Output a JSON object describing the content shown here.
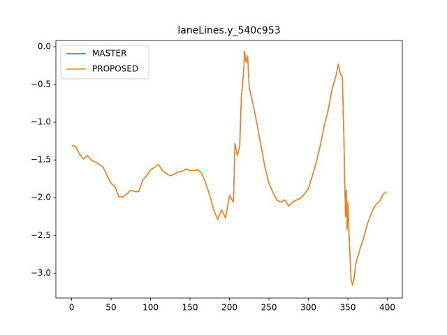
{
  "chart_data": {
    "type": "line",
    "title": "laneLines.y_540c953",
    "x": [
      0,
      5,
      10,
      15,
      20,
      25,
      30,
      35,
      40,
      45,
      50,
      55,
      60,
      65,
      70,
      75,
      80,
      85,
      90,
      95,
      100,
      105,
      110,
      115,
      120,
      125,
      130,
      135,
      140,
      145,
      150,
      155,
      160,
      165,
      170,
      175,
      180,
      185,
      190,
      195,
      200,
      205,
      207,
      210,
      213,
      215,
      218,
      219,
      221,
      223,
      225,
      230,
      235,
      240,
      245,
      250,
      255,
      260,
      265,
      270,
      275,
      280,
      285,
      290,
      295,
      300,
      305,
      310,
      315,
      320,
      325,
      330,
      335,
      338,
      340,
      343,
      345,
      347,
      348,
      349,
      350,
      352,
      354,
      356,
      358,
      360,
      365,
      370,
      375,
      380,
      385,
      390,
      395,
      399
    ],
    "series": [
      {
        "name": "MASTER",
        "color": "#1f77b4",
        "values": [
          -1.31,
          -1.32,
          -1.42,
          -1.49,
          -1.44,
          -1.5,
          -1.53,
          -1.56,
          -1.6,
          -1.71,
          -1.81,
          -1.86,
          -1.99,
          -1.99,
          -1.95,
          -1.9,
          -1.92,
          -1.92,
          -1.77,
          -1.71,
          -1.63,
          -1.6,
          -1.56,
          -1.64,
          -1.68,
          -1.71,
          -1.69,
          -1.66,
          -1.65,
          -1.62,
          -1.64,
          -1.64,
          -1.63,
          -1.68,
          -1.81,
          -1.97,
          -2.16,
          -2.29,
          -2.16,
          -2.27,
          -1.97,
          -2.06,
          -1.28,
          -1.44,
          -1.32,
          -0.68,
          -0.31,
          -0.06,
          -0.21,
          -0.12,
          -0.54,
          -0.77,
          -1.03,
          -1.32,
          -1.6,
          -1.81,
          -1.93,
          -2.03,
          -2.06,
          -2.03,
          -2.11,
          -2.06,
          -2.03,
          -2.01,
          -1.95,
          -1.88,
          -1.71,
          -1.53,
          -1.31,
          -1.05,
          -0.84,
          -0.56,
          -0.38,
          -0.23,
          -0.35,
          -0.4,
          -1.23,
          -2.25,
          -1.9,
          -2.42,
          -2.06,
          -2.62,
          -3.08,
          -3.16,
          -3.06,
          -2.88,
          -2.69,
          -2.53,
          -2.34,
          -2.2,
          -2.1,
          -2.05,
          -1.95,
          -1.92
        ]
      },
      {
        "name": "PROPOSED",
        "color": "#ff7f0e",
        "values": [
          -1.31,
          -1.32,
          -1.42,
          -1.49,
          -1.44,
          -1.5,
          -1.53,
          -1.56,
          -1.6,
          -1.71,
          -1.81,
          -1.86,
          -1.99,
          -1.99,
          -1.95,
          -1.9,
          -1.92,
          -1.92,
          -1.77,
          -1.71,
          -1.63,
          -1.6,
          -1.56,
          -1.64,
          -1.68,
          -1.71,
          -1.69,
          -1.66,
          -1.65,
          -1.62,
          -1.64,
          -1.64,
          -1.63,
          -1.68,
          -1.81,
          -1.97,
          -2.16,
          -2.29,
          -2.16,
          -2.27,
          -1.97,
          -2.06,
          -1.28,
          -1.44,
          -1.32,
          -0.68,
          -0.31,
          -0.06,
          -0.21,
          -0.12,
          -0.54,
          -0.77,
          -1.03,
          -1.32,
          -1.6,
          -1.81,
          -1.93,
          -2.03,
          -2.06,
          -2.03,
          -2.11,
          -2.06,
          -2.03,
          -2.01,
          -1.95,
          -1.88,
          -1.71,
          -1.53,
          -1.31,
          -1.05,
          -0.84,
          -0.56,
          -0.38,
          -0.23,
          -0.35,
          -0.4,
          -1.23,
          -2.25,
          -1.9,
          -2.42,
          -2.06,
          -2.62,
          -3.08,
          -3.16,
          -3.06,
          -2.88,
          -2.69,
          -2.53,
          -2.34,
          -2.2,
          -2.1,
          -2.05,
          -1.95,
          -1.92
        ]
      }
    ],
    "xlim": [
      -19.95,
      418.95
    ],
    "ylim": [
      -3.33,
      0.083
    ],
    "xticks": [
      0,
      50,
      100,
      150,
      200,
      250,
      300,
      350,
      400
    ],
    "yticks": [
      {
        "value": -3.0,
        "label": "−3.0"
      },
      {
        "value": -2.5,
        "label": "−2.5"
      },
      {
        "value": -2.0,
        "label": "−2.0"
      },
      {
        "value": -1.5,
        "label": "−1.5"
      },
      {
        "value": -1.0,
        "label": "−1.0"
      },
      {
        "value": -0.5,
        "label": "−0.5"
      },
      {
        "value": 0.0,
        "label": "0.0"
      }
    ],
    "legend": "upper left",
    "grid": false
  }
}
